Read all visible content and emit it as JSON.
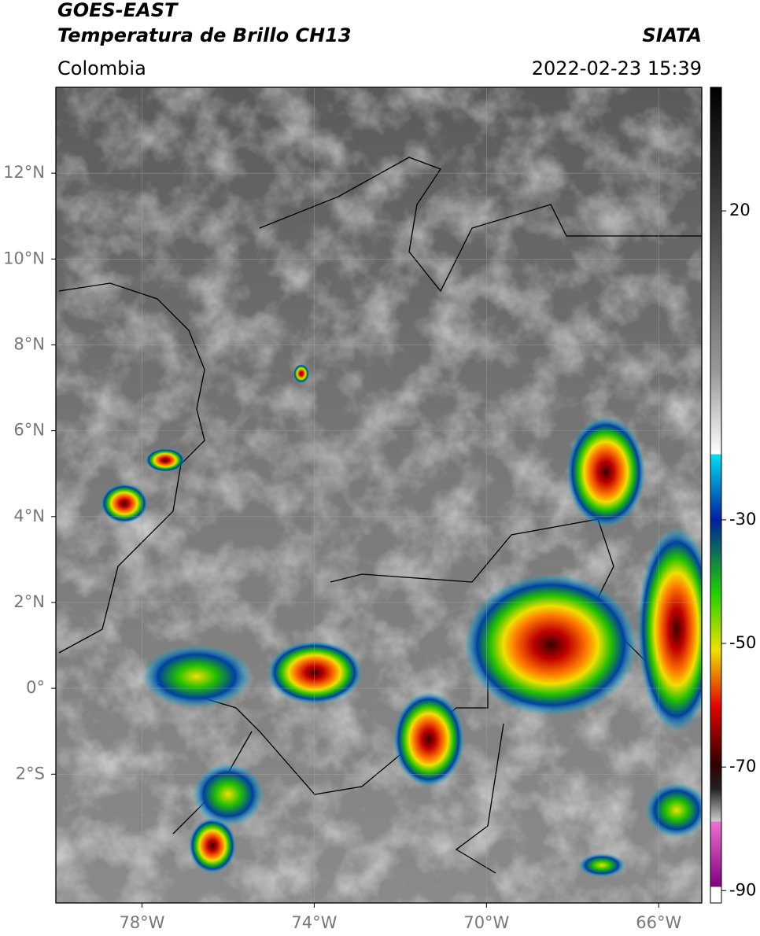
{
  "header": {
    "title": "GOES-EAST",
    "subtitle": "Temperatura de Brillo CH13",
    "source": "SIATA",
    "region": "Colombia",
    "datetime": "2022-02-23 15:39"
  },
  "map": {
    "xlim": [
      -80,
      -65
    ],
    "ylim": [
      -5,
      14
    ],
    "lat_ticks": [
      {
        "value": 12,
        "label": "12°N"
      },
      {
        "value": 10,
        "label": "10°N"
      },
      {
        "value": 8,
        "label": "8°N"
      },
      {
        "value": 6,
        "label": "6°N"
      },
      {
        "value": 4,
        "label": "4°N"
      },
      {
        "value": 2,
        "label": "2°N"
      },
      {
        "value": 0,
        "label": "0°"
      },
      {
        "value": -2,
        "label": "2°S"
      }
    ],
    "lon_ticks": [
      {
        "value": -78,
        "label": "78°W"
      },
      {
        "value": -74,
        "label": "74°W"
      },
      {
        "value": -70,
        "label": "70°W"
      },
      {
        "value": -66,
        "label": "66°W"
      }
    ],
    "colorbar": {
      "lim": [
        -92,
        40
      ],
      "ticks": [
        20,
        -30,
        -50,
        -70,
        -90
      ]
    }
  }
}
